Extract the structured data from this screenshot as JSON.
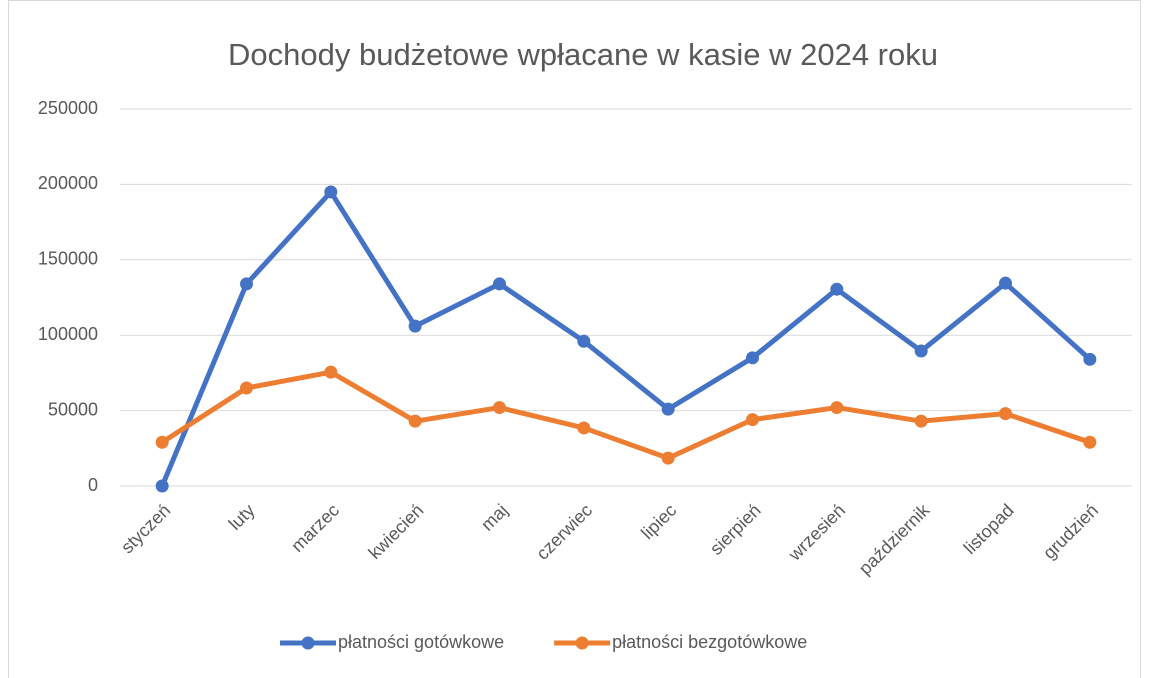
{
  "chart_data": {
    "type": "line",
    "title": "Dochody budżetowe wpłacane w kasie w 2024 roku",
    "categories": [
      "styczeń",
      "luty",
      "marzec",
      "kwiecień",
      "maj",
      "czerwiec",
      "lipiec",
      "sierpień",
      "wrzesień",
      "październik",
      "listopad",
      "grudzień"
    ],
    "series": [
      {
        "name": "płatności gotówkowe",
        "color": "#4472c4",
        "values": [
          0,
          134000,
          195000,
          106000,
          134000,
          96000,
          51000,
          85000,
          130500,
          89500,
          134500,
          84000
        ]
      },
      {
        "name": "płatności bezgotówkowe",
        "color": "#ed7d31",
        "values": [
          29000,
          65000,
          75500,
          43000,
          52000,
          38500,
          18500,
          44000,
          52000,
          43000,
          48000,
          29000
        ]
      }
    ],
    "ylim": [
      0,
      250000
    ],
    "yticks": [
      0,
      50000,
      100000,
      150000,
      200000,
      250000
    ],
    "grid": true,
    "legend": "bottom"
  }
}
